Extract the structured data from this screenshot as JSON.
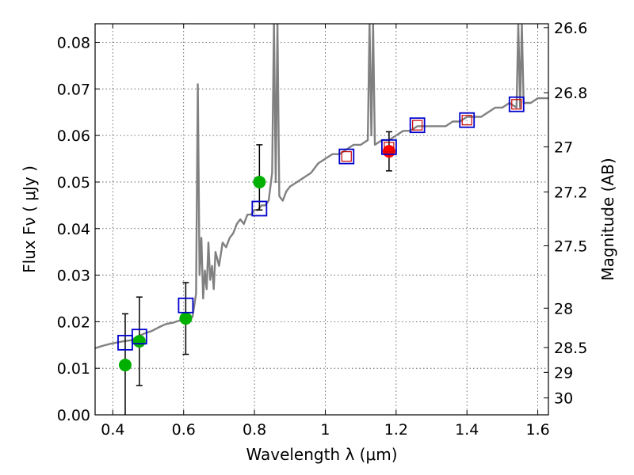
{
  "chart_data": {
    "type": "scatter",
    "title": "",
    "xlabel": "Wavelength  λ (μm)",
    "ylabel": "Flux  Fν  ( μJy )",
    "y2label": "Magnitude (AB)",
    "xlim": [
      0.35,
      1.63
    ],
    "ylim": [
      0.0,
      0.084
    ],
    "grid": true,
    "legend": "none",
    "x_ticks": [
      0.4,
      0.6,
      0.8,
      1.0,
      1.2,
      1.4,
      1.6
    ],
    "x_tick_labels": [
      "0.4",
      "0.6",
      "0.8",
      "1",
      "1.2",
      "1.4",
      "1.6"
    ],
    "y_ticks": [
      0.0,
      0.01,
      0.02,
      0.03,
      0.04,
      0.05,
      0.06,
      0.07,
      0.08
    ],
    "y_tick_labels": [
      "0.00",
      "0.01",
      "0.02",
      "0.03",
      "0.04",
      "0.05",
      "0.06",
      "0.07",
      "0.08"
    ],
    "mag_ticks": [
      26.6,
      26.8,
      27,
      27.2,
      27.5,
      28,
      28.5,
      29,
      30
    ],
    "mag_tick_labels": [
      "26.6",
      "26.8",
      "27",
      "27.2",
      "27.5",
      "28",
      "28.5",
      "29",
      "30"
    ],
    "colors": {
      "model": "#808080",
      "observed_hst": "#00b000",
      "observed_ir": "#ff0000",
      "model_photometry": "#0000cc",
      "model_photometry_inner": "#cc0000",
      "errorbar": "#000000"
    },
    "series": [
      {
        "kind": "sed_model_line",
        "x": [
          0.35,
          0.37,
          0.39,
          0.41,
          0.43,
          0.45,
          0.47,
          0.49,
          0.51,
          0.53,
          0.55,
          0.57,
          0.59,
          0.61,
          0.625,
          0.635,
          0.64,
          0.645,
          0.65,
          0.655,
          0.66,
          0.665,
          0.67,
          0.675,
          0.68,
          0.685,
          0.69,
          0.7,
          0.71,
          0.72,
          0.73,
          0.74,
          0.75,
          0.76,
          0.77,
          0.78,
          0.79,
          0.8,
          0.81,
          0.82,
          0.83,
          0.84,
          0.85,
          0.855,
          0.86,
          0.865,
          0.87,
          0.88,
          0.89,
          0.9,
          0.92,
          0.94,
          0.96,
          0.98,
          1.0,
          1.02,
          1.04,
          1.06,
          1.08,
          1.1,
          1.12,
          1.125,
          1.13,
          1.135,
          1.14,
          1.16,
          1.18,
          1.2,
          1.22,
          1.24,
          1.26,
          1.28,
          1.3,
          1.32,
          1.34,
          1.36,
          1.38,
          1.4,
          1.42,
          1.44,
          1.46,
          1.48,
          1.5,
          1.52,
          1.54,
          1.545,
          1.55,
          1.555,
          1.56,
          1.58,
          1.6,
          1.63
        ],
        "y": [
          0.0143,
          0.0148,
          0.0152,
          0.0155,
          0.0158,
          0.016,
          0.0168,
          0.0175,
          0.018,
          0.0188,
          0.0195,
          0.0198,
          0.0203,
          0.0207,
          0.021,
          0.026,
          0.071,
          0.03,
          0.038,
          0.025,
          0.031,
          0.027,
          0.037,
          0.029,
          0.032,
          0.027,
          0.035,
          0.032,
          0.037,
          0.036,
          0.038,
          0.039,
          0.041,
          0.042,
          0.041,
          0.043,
          0.043,
          0.044,
          0.044,
          0.045,
          0.045,
          0.046,
          0.052,
          0.084,
          0.05,
          0.084,
          0.047,
          0.046,
          0.048,
          0.049,
          0.05,
          0.051,
          0.052,
          0.054,
          0.055,
          0.056,
          0.056,
          0.057,
          0.058,
          0.058,
          0.059,
          0.084,
          0.06,
          0.084,
          0.058,
          0.059,
          0.059,
          0.06,
          0.061,
          0.061,
          0.062,
          0.062,
          0.062,
          0.062,
          0.062,
          0.063,
          0.063,
          0.064,
          0.064,
          0.064,
          0.065,
          0.066,
          0.066,
          0.067,
          0.066,
          0.084,
          0.066,
          0.084,
          0.067,
          0.067,
          0.068,
          0.068
        ]
      },
      {
        "kind": "observed_hst",
        "x": [
          0.435,
          0.475,
          0.606,
          0.814
        ],
        "y": [
          0.0107,
          0.0158,
          0.0207,
          0.05
        ],
        "err_low": [
          0.011,
          0.0095,
          0.0077,
          0.006
        ],
        "err_high": [
          0.011,
          0.0095,
          0.0077,
          0.008
        ]
      },
      {
        "kind": "observed_ir",
        "x": [
          1.18
        ],
        "y": [
          0.0566
        ],
        "err_low": [
          0.0042
        ],
        "err_high": [
          0.0042
        ]
      },
      {
        "kind": "model_photometry",
        "x": [
          0.435,
          0.475,
          0.606,
          0.814,
          1.06,
          1.18,
          1.26,
          1.4,
          1.54
        ],
        "y": [
          0.0155,
          0.0168,
          0.0235,
          0.0443,
          0.0555,
          0.0575,
          0.0622,
          0.0633,
          0.0667
        ]
      }
    ]
  }
}
